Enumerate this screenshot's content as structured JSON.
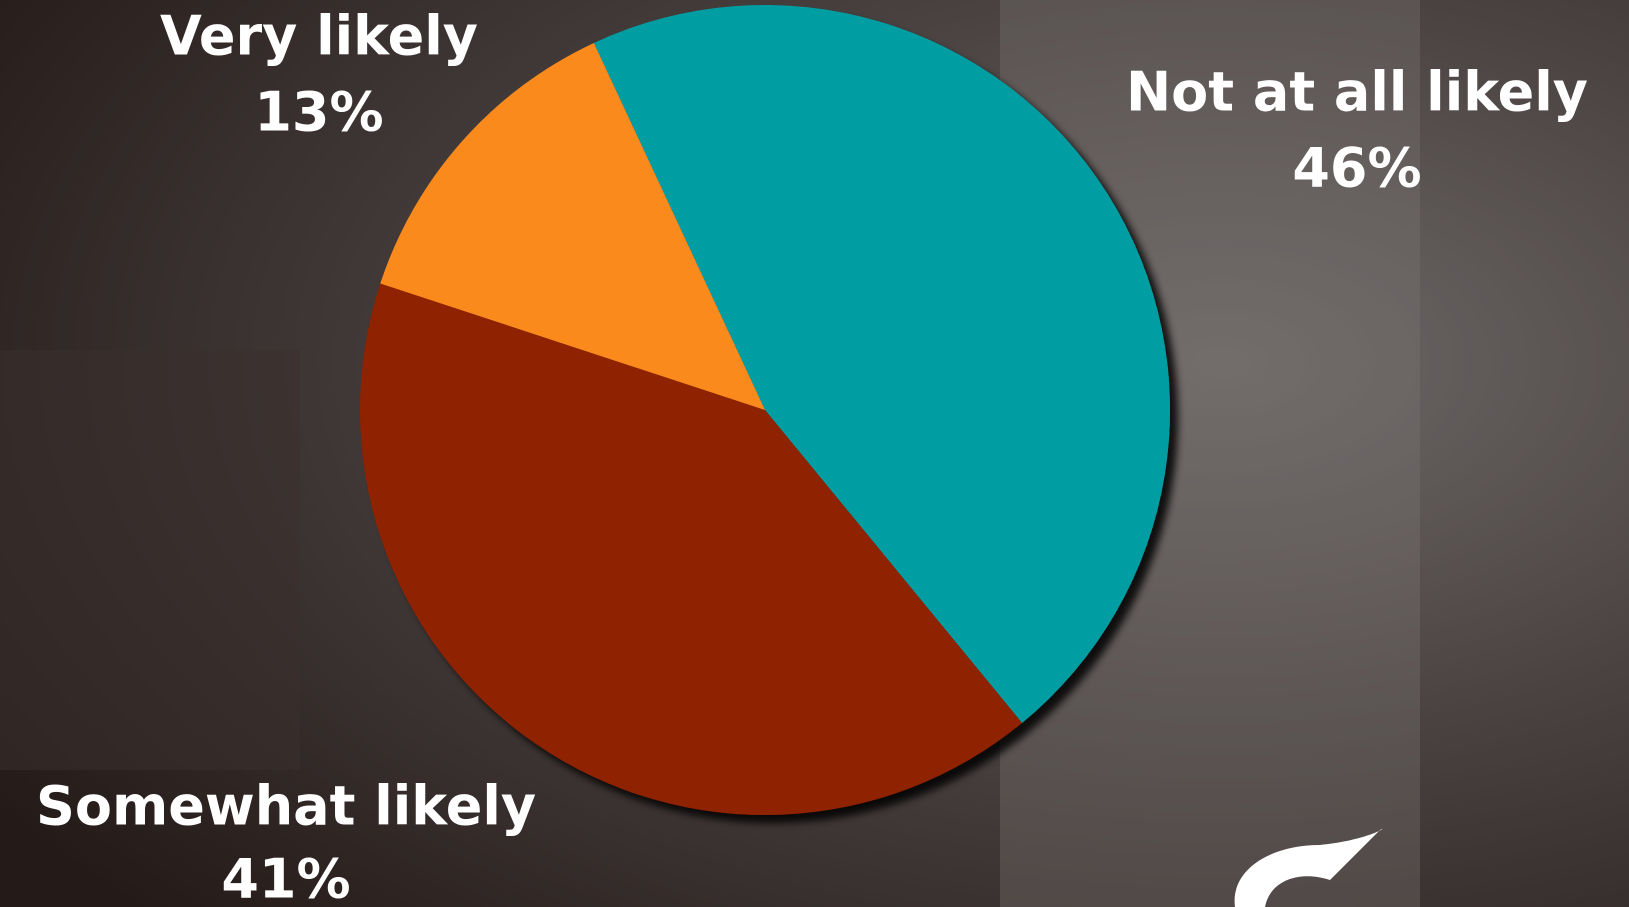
{
  "chart_data": {
    "type": "pie",
    "categories": [
      "Not at all likely",
      "Somewhat likely",
      "Very likely"
    ],
    "values": [
      46,
      41,
      13
    ],
    "value_labels": [
      "46%",
      "41%",
      "13%"
    ],
    "colors": [
      "#009ea3",
      "#8f2300",
      "#fb8a1e"
    ]
  }
}
